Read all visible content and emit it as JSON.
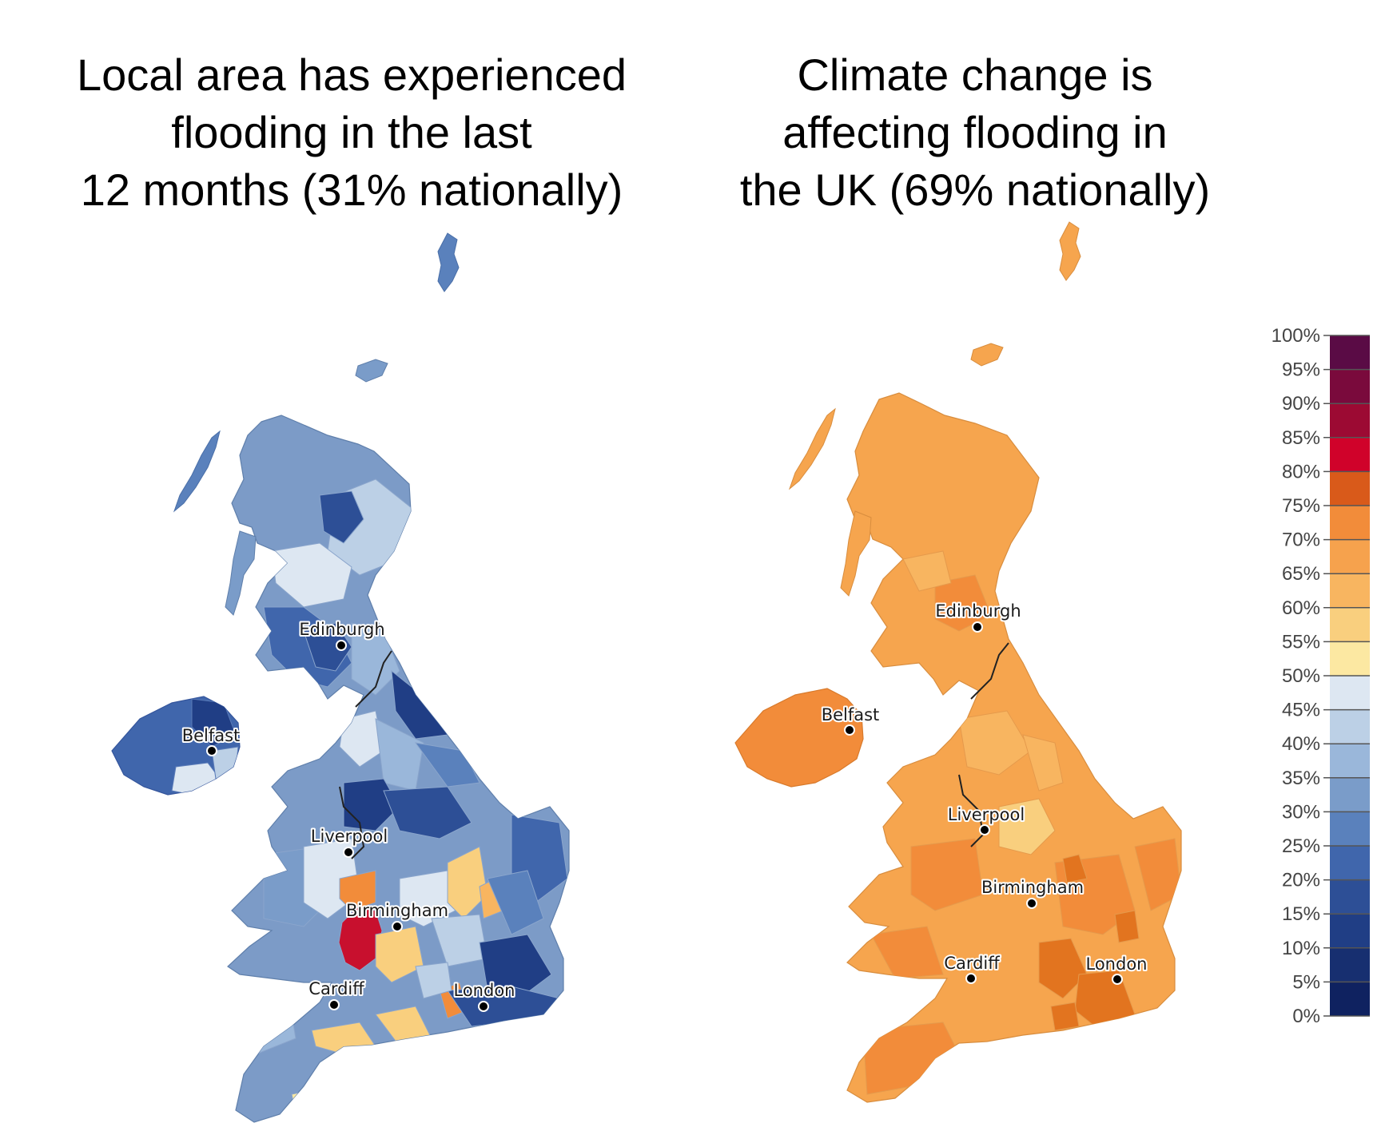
{
  "titles": {
    "left": [
      "Local area has experienced",
      "flooding in the last",
      "12 months (31% nationally)"
    ],
    "right": [
      "Climate change is",
      "affecting flooding in",
      "the UK (69% nationally)"
    ]
  },
  "cities": {
    "edinburgh": "Edinburgh",
    "belfast": "Belfast",
    "liverpool": "Liverpool",
    "birmingham": "Birmingham",
    "cardiff": "Cardiff",
    "london": "London"
  },
  "legend": {
    "ticks": [
      "100%",
      "95%",
      "90%",
      "85%",
      "80%",
      "75%",
      "70%",
      "65%",
      "60%",
      "55%",
      "50%",
      "45%",
      "40%",
      "35%",
      "30%",
      "25%",
      "20%",
      "15%",
      "10%",
      "5%",
      "0%"
    ],
    "colors_top_to_bottom": [
      "#5a0b45",
      "#7a0a3c",
      "#9c0a33",
      "#d0022a",
      "#d95a1a",
      "#f28c3a",
      "#f6a24d",
      "#f8b560",
      "#f9cf7e",
      "#fce8a2",
      "#dde7f2",
      "#bcd0e6",
      "#9ab7da",
      "#7a9cc9",
      "#5a81bc",
      "#4066ac",
      "#2d4f96",
      "#203e85",
      "#172f70",
      "#0f2260"
    ]
  },
  "palette": {
    "left_base": "#7c9bc7",
    "right_base": "#f6a54e",
    "dark_orange": "#e2741f",
    "highlight_red": "#c8102e"
  }
}
